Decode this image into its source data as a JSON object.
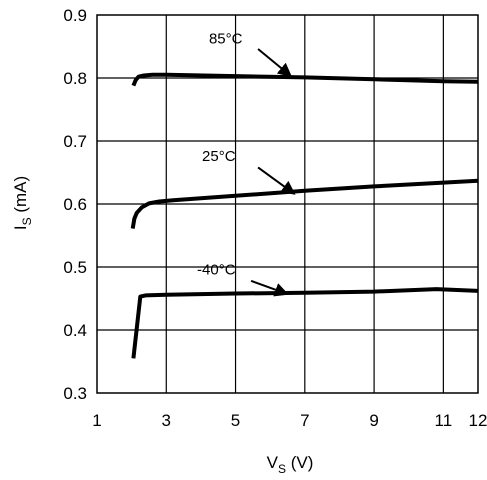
{
  "chart_data": {
    "type": "line",
    "xlabel": {
      "main": "V",
      "sub": "S",
      "unit": " (V)"
    },
    "ylabel": {
      "main": "I",
      "sub": "S",
      "unit": " (mA)"
    },
    "xlim": [
      1,
      12
    ],
    "ylim": [
      0.3,
      0.9
    ],
    "x_ticks": [
      1,
      3,
      5,
      7,
      9,
      11,
      12
    ],
    "x_tick_labels": [
      "1",
      "3",
      "5",
      "7",
      "9",
      "11",
      "12"
    ],
    "y_ticks": [
      0.3,
      0.4,
      0.5,
      0.6,
      0.7,
      0.8,
      0.9
    ],
    "y_tick_labels": [
      "0.3",
      "0.4",
      "0.5",
      "0.6",
      "0.7",
      "0.8",
      "0.9"
    ],
    "grid": true,
    "series": [
      {
        "name": "85°C",
        "x": [
          2.05,
          2.12,
          2.2,
          2.35,
          2.6,
          3.0,
          5.0,
          7.0,
          9.0,
          11.0,
          12.0
        ],
        "y": [
          0.788,
          0.797,
          0.802,
          0.804,
          0.805,
          0.805,
          0.803,
          0.801,
          0.798,
          0.795,
          0.794
        ],
        "annotation": {
          "label_x": 5.2,
          "label_y": 0.855,
          "arrow_start": [
            5.65,
            0.846
          ],
          "arrow_end": [
            6.6,
            0.803
          ]
        }
      },
      {
        "name": "25°C",
        "x": [
          2.03,
          2.08,
          2.15,
          2.3,
          2.5,
          2.8,
          3.2,
          5.0,
          7.0,
          9.0,
          11.0,
          12.0
        ],
        "y": [
          0.561,
          0.577,
          0.586,
          0.595,
          0.601,
          0.604,
          0.606,
          0.613,
          0.621,
          0.628,
          0.634,
          0.637
        ],
        "annotation": {
          "label_x": 5.0,
          "label_y": 0.668,
          "arrow_start": [
            5.65,
            0.658
          ],
          "arrow_end": [
            6.7,
            0.616
          ]
        }
      },
      {
        "name": "-40°C",
        "x": [
          2.05,
          2.25,
          2.4,
          3.0,
          5.0,
          7.0,
          9.0,
          10.8,
          12.0
        ],
        "y": [
          0.355,
          0.453,
          0.455,
          0.456,
          0.458,
          0.459,
          0.461,
          0.465,
          0.462
        ],
        "annotation": {
          "label_x": 5.0,
          "label_y": 0.488,
          "arrow_start": [
            5.45,
            0.478
          ],
          "arrow_end": [
            6.5,
            0.457
          ]
        }
      }
    ]
  }
}
